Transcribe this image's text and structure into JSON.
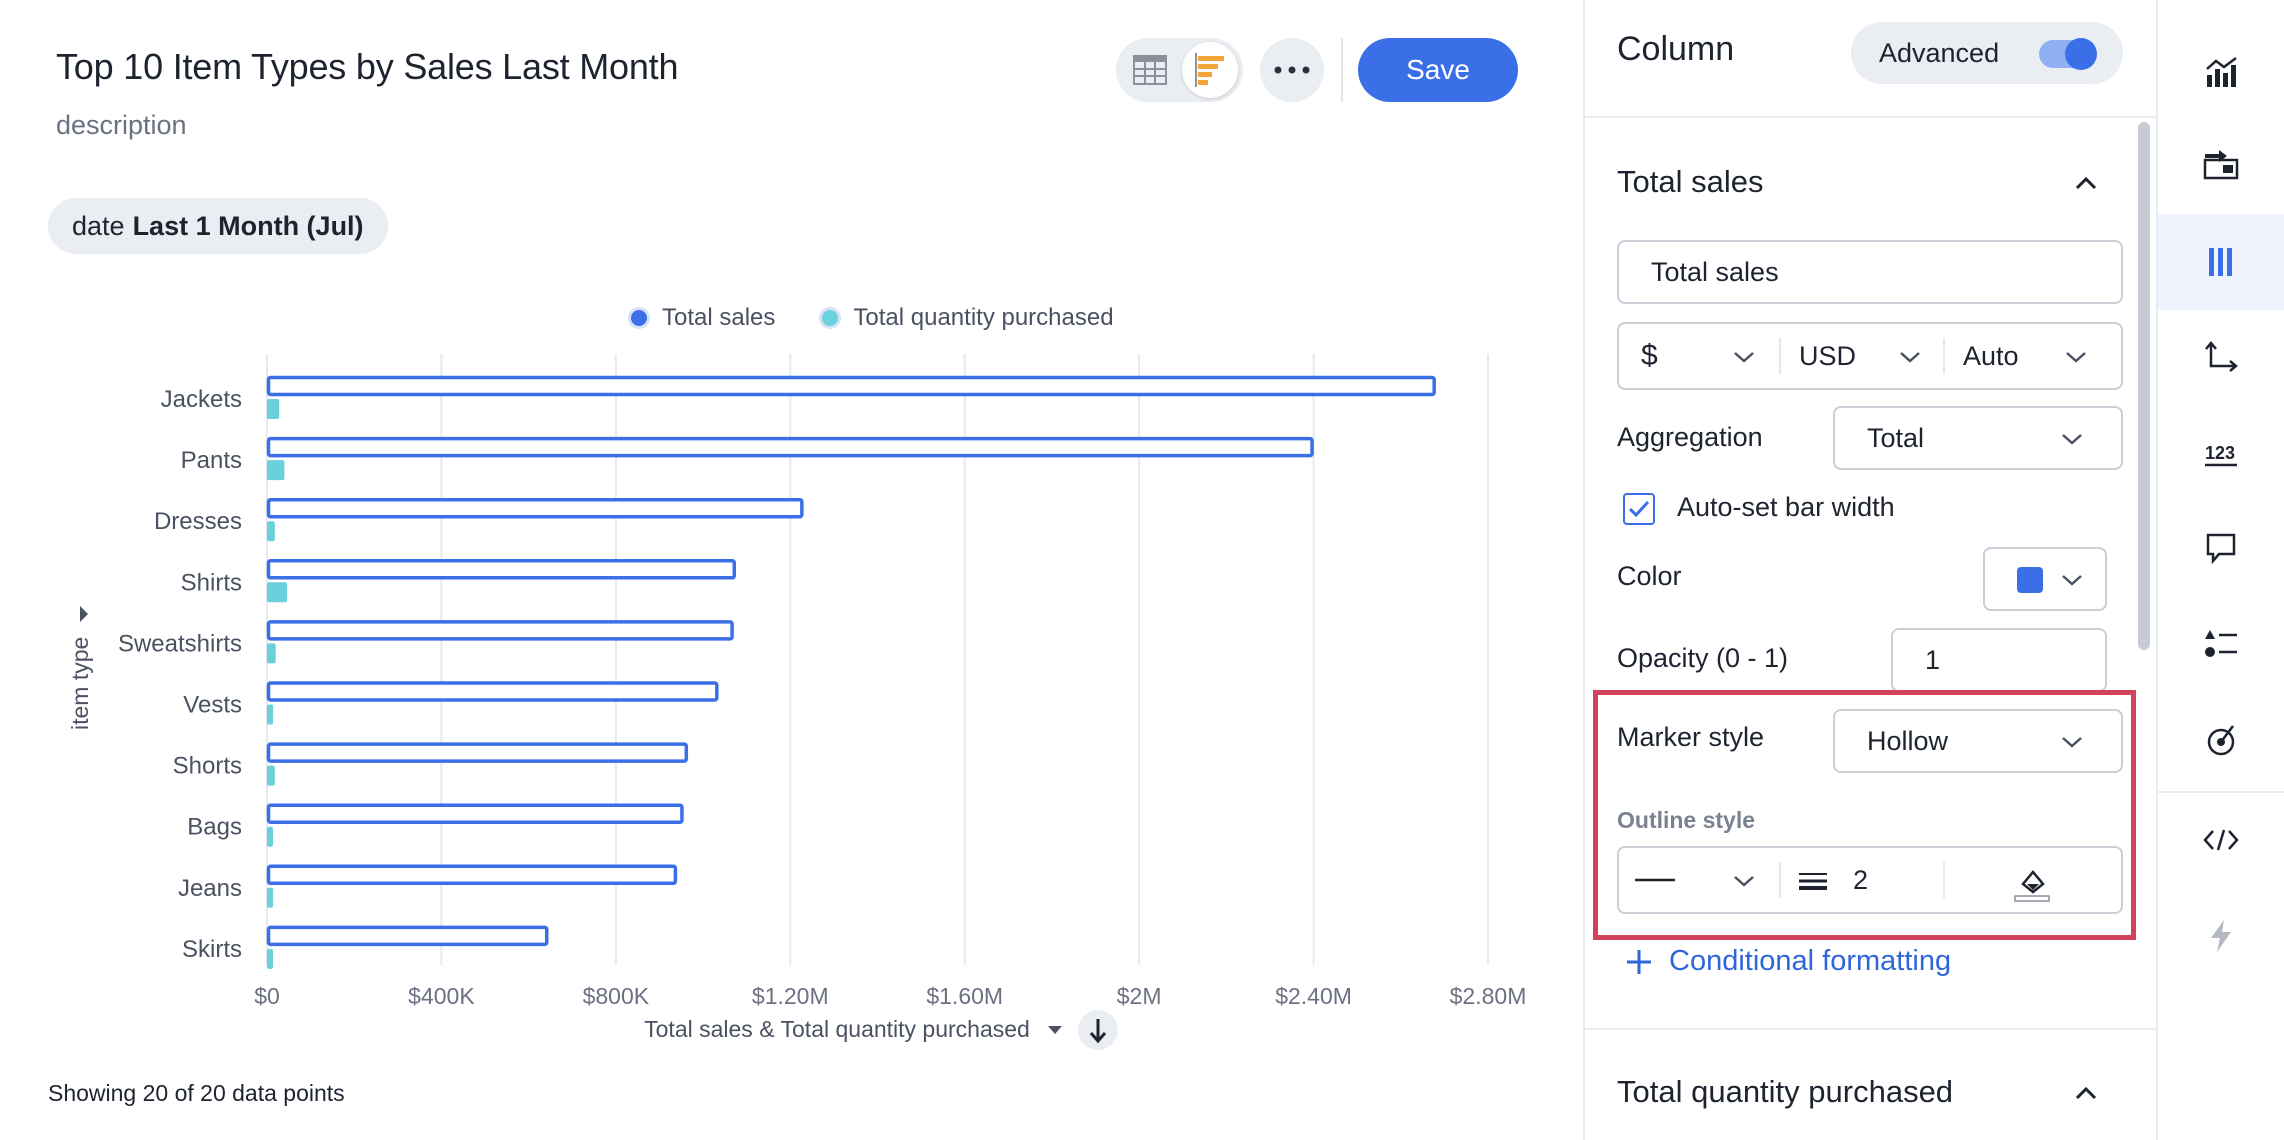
{
  "header": {
    "title": "Top 10 Item Types by Sales Last Month",
    "description": "description",
    "save_label": "Save"
  },
  "filter": {
    "key": "date",
    "value": "Last 1 Month (Jul)"
  },
  "chart_data": {
    "type": "bar",
    "orientation": "horizontal",
    "categories": [
      "Jackets",
      "Pants",
      "Dresses",
      "Shirts",
      "Sweatshirts",
      "Vests",
      "Shorts",
      "Bags",
      "Jeans",
      "Skirts"
    ],
    "series": [
      {
        "name": "Total sales",
        "color": "#3b6fe8",
        "marker": "hollow",
        "values": [
          2680000,
          2400000,
          1230000,
          1075000,
          1070000,
          1035000,
          965000,
          955000,
          940000,
          645000
        ]
      },
      {
        "name": "Total quantity purchased",
        "color": "#6ad0dc",
        "marker": "filled",
        "values": [
          28000,
          40000,
          18000,
          46000,
          20000,
          14000,
          18000,
          13000,
          14000,
          13000
        ]
      }
    ],
    "x_ticks": [
      "$0",
      "$400K",
      "$800K",
      "$1.20M",
      "$1.60M",
      "$2M",
      "$2.40M",
      "$2.80M"
    ],
    "xlim": [
      0,
      2800000
    ],
    "xlabel": "Total sales & Total quantity purchased",
    "ylabel": "item type",
    "grid": true,
    "legend_position": "top"
  },
  "footer": {
    "showing": "Showing 20 of 20 data points"
  },
  "panel": {
    "title": "Column",
    "advanced_label": "Advanced",
    "section1_title": "Total sales",
    "name_value": "Total sales",
    "currency_symbol": "$",
    "currency_code": "USD",
    "format": "Auto",
    "aggregation_label": "Aggregation",
    "aggregation_value": "Total",
    "autoset_label": "Auto-set bar width",
    "color_label": "Color",
    "color_value": "#3b6fe8",
    "opacity_label": "Opacity (0 - 1)",
    "opacity_value": "1",
    "marker_label": "Marker style",
    "marker_value": "Hollow",
    "outline_label": "Outline style",
    "outline_width": "2",
    "conditional_label": "Conditional formatting",
    "section2_title": "Total quantity purchased"
  },
  "rail": {
    "items": [
      "chart-type-icon",
      "configure-icon",
      "columns-icon",
      "axes-icon",
      "number-icon",
      "tooltip-icon",
      "legend-icon",
      "goal-icon",
      "code-icon",
      "lightning-icon"
    ]
  }
}
